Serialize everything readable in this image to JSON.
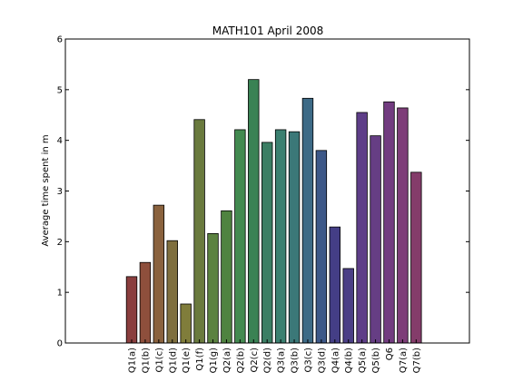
{
  "chart_data": {
    "type": "bar",
    "title": "MATH101 April 2008",
    "xlabel": "",
    "ylabel": "Average time spent in m",
    "ylim": [
      0,
      6
    ],
    "yticks": [
      "0",
      "1",
      "2",
      "3",
      "4",
      "5",
      "6"
    ],
    "grid": false,
    "categories": [
      "Q1(a)",
      "Q1(b)",
      "Q1(c)",
      "Q1(d)",
      "Q1(e)",
      "Q1(f)",
      "Q1(g)",
      "Q2(a)",
      "Q2(b)",
      "Q2(c)",
      "Q2(d)",
      "Q3(a)",
      "Q3(b)",
      "Q3(c)",
      "Q3(d)",
      "Q4(a)",
      "Q4(b)",
      "Q5(a)",
      "Q5(b)",
      "Q6",
      "Q7(a)",
      "Q7(b)"
    ],
    "values": [
      1.31,
      1.59,
      2.72,
      2.02,
      0.77,
      4.41,
      2.16,
      2.61,
      4.21,
      5.2,
      3.96,
      4.21,
      4.17,
      4.83,
      3.8,
      2.29,
      1.47,
      4.55,
      4.09,
      4.76,
      4.64,
      3.37
    ],
    "colors": [
      "#8a3e3e",
      "#8e4f3c",
      "#8a623e",
      "#7f6f3e",
      "#807d3b",
      "#6a7a3e",
      "#5b8240",
      "#4f8340",
      "#438a50",
      "#3a8254",
      "#3b7e64",
      "#3b8070",
      "#3b7878",
      "#3d6a86",
      "#3d5888",
      "#443e86",
      "#4b3f86",
      "#5e3e88",
      "#663e84",
      "#723c80",
      "#7d3d78",
      "#843c6a"
    ]
  }
}
